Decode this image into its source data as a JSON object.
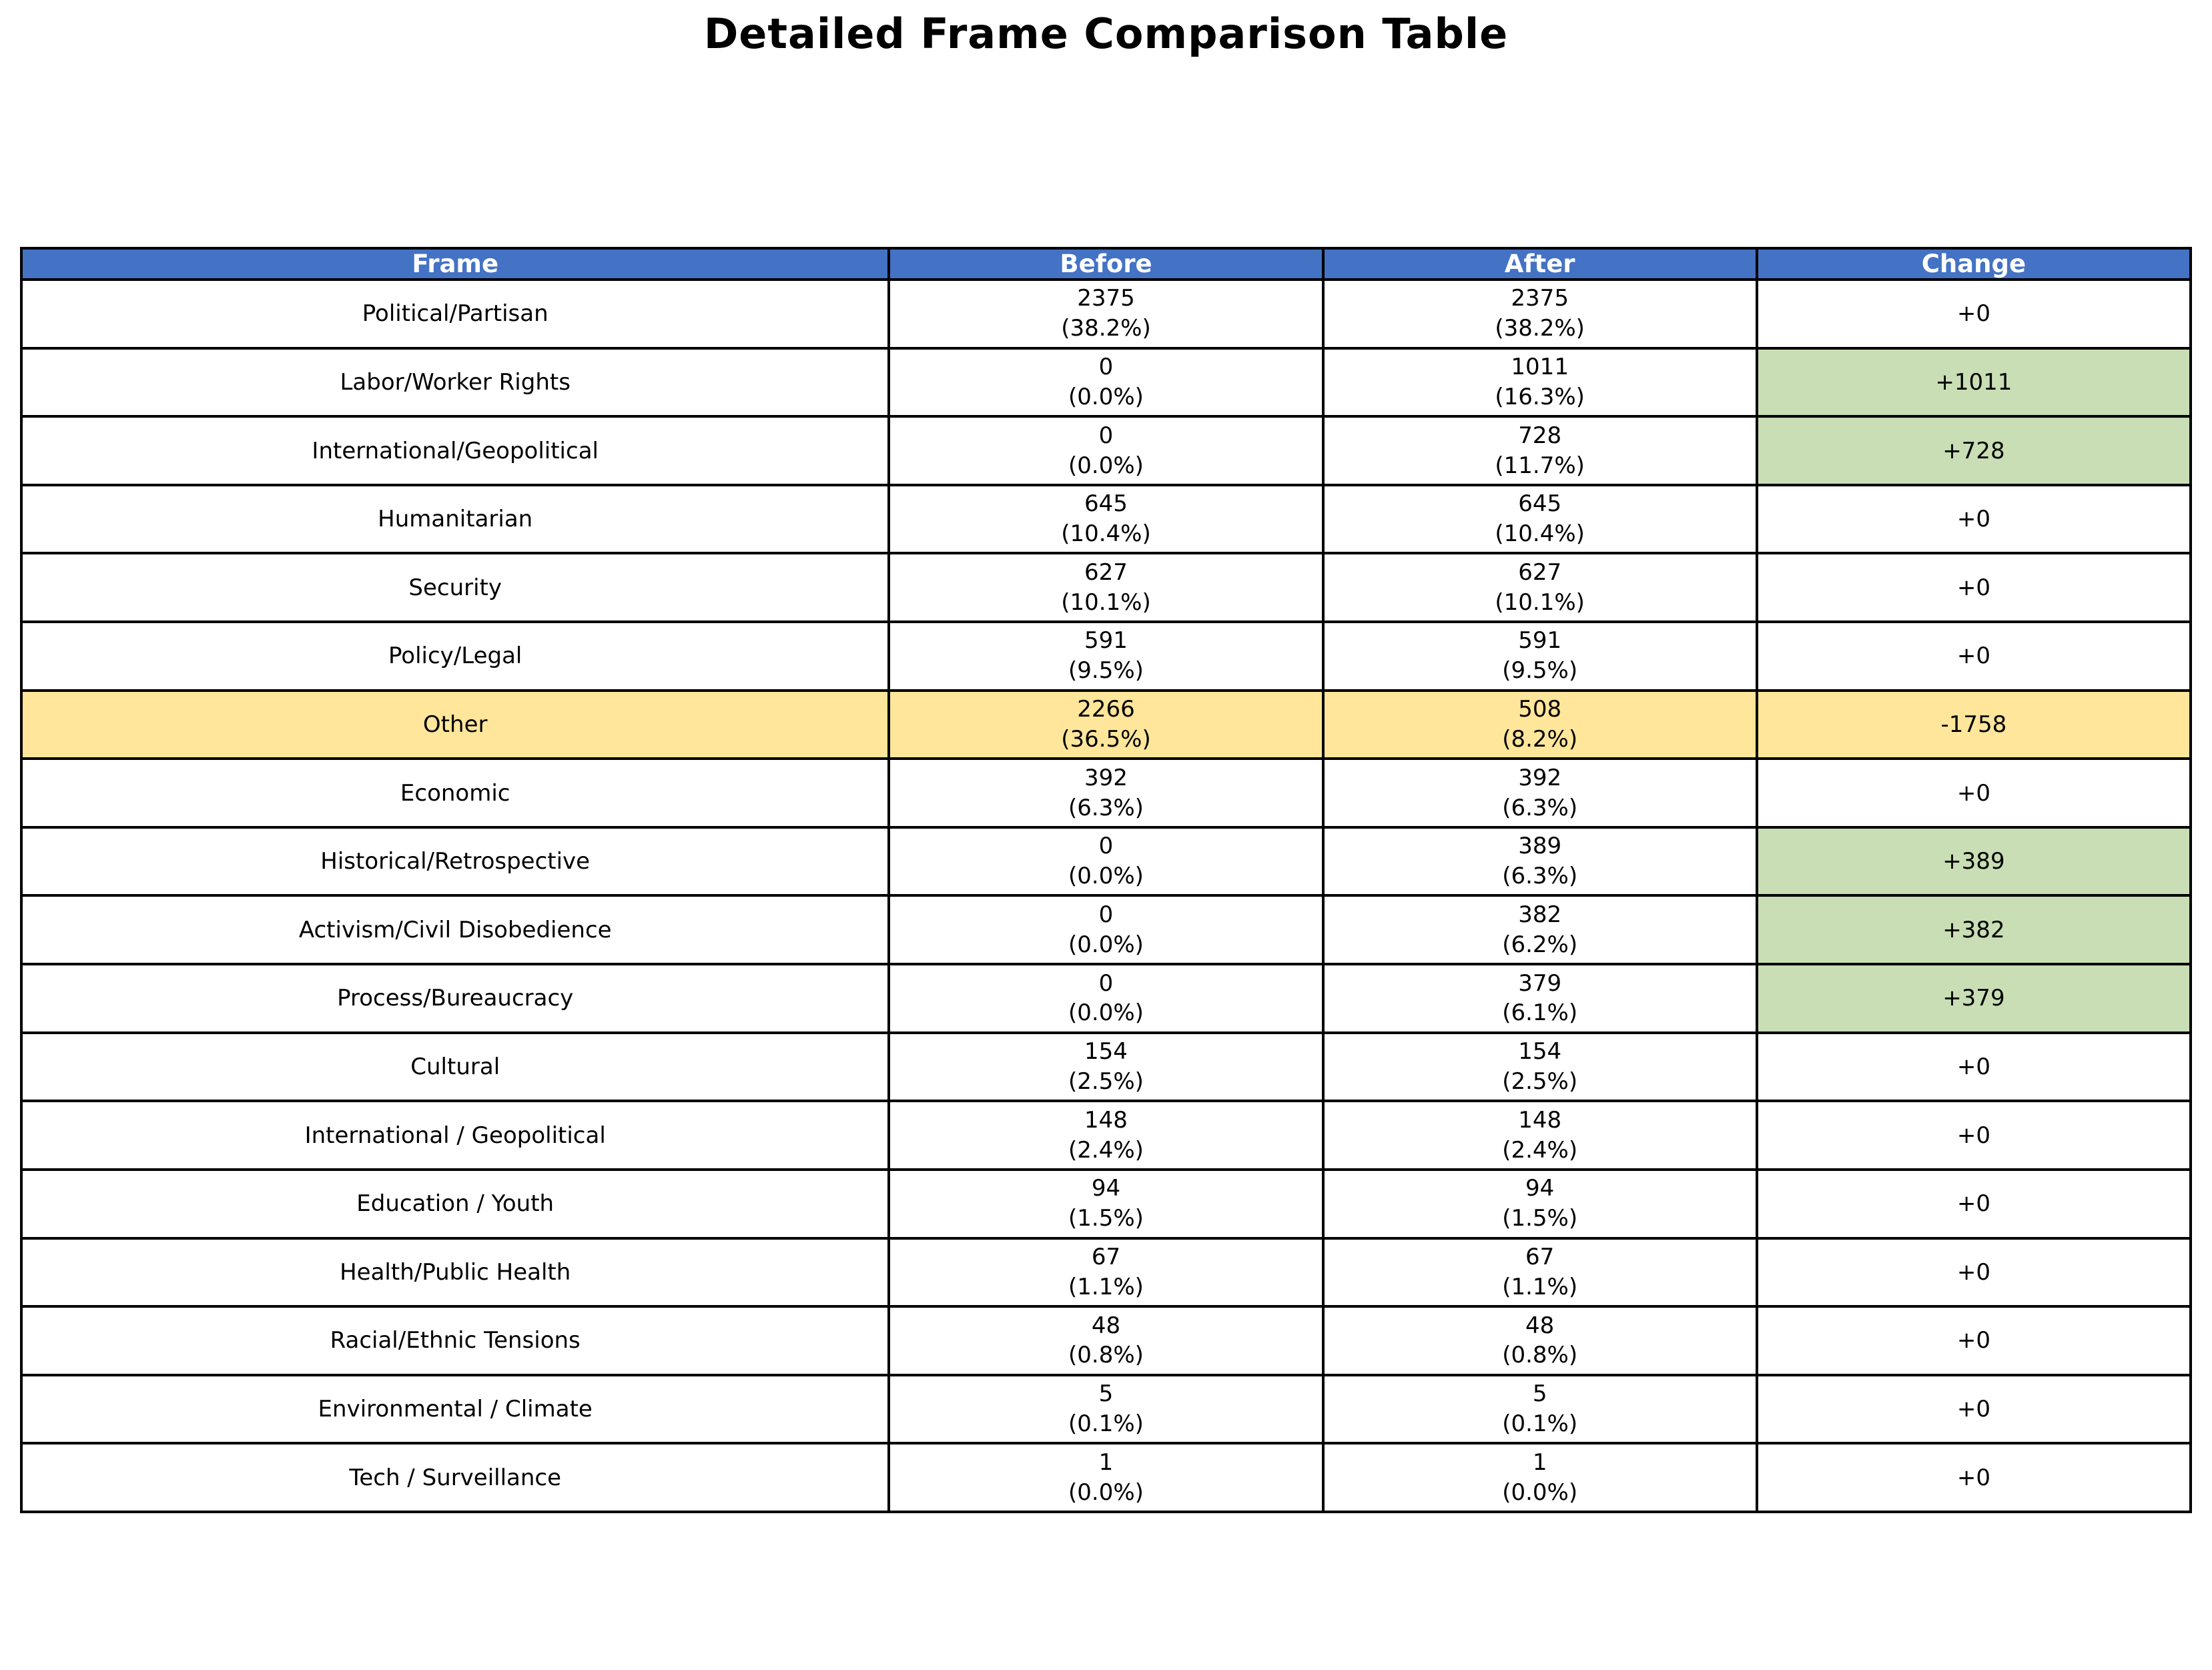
{
  "title": "Detailed Frame Comparison Table",
  "colors": {
    "header_bg": "#4472C4",
    "header_text": "#FFFFFF",
    "increase_cell_bg": "#C9DEB4",
    "other_row_bg": "#FFE69A",
    "border": "#000000"
  },
  "table": {
    "headers": [
      "Frame",
      "Before",
      "After",
      "Change"
    ],
    "rows": [
      {
        "frame": "Political/Partisan",
        "before_count": "2375",
        "before_pct": "(38.2%)",
        "after_count": "2375",
        "after_pct": "(38.2%)",
        "change": "+0",
        "highlight": "none"
      },
      {
        "frame": "Labor/Worker Rights",
        "before_count": "0",
        "before_pct": "(0.0%)",
        "after_count": "1011",
        "after_pct": "(16.3%)",
        "change": "+1011",
        "highlight": "change-green"
      },
      {
        "frame": "International/Geopolitical",
        "before_count": "0",
        "before_pct": "(0.0%)",
        "after_count": "728",
        "after_pct": "(11.7%)",
        "change": "+728",
        "highlight": "change-green"
      },
      {
        "frame": "Humanitarian",
        "before_count": "645",
        "before_pct": "(10.4%)",
        "after_count": "645",
        "after_pct": "(10.4%)",
        "change": "+0",
        "highlight": "none"
      },
      {
        "frame": "Security",
        "before_count": "627",
        "before_pct": "(10.1%)",
        "after_count": "627",
        "after_pct": "(10.1%)",
        "change": "+0",
        "highlight": "none"
      },
      {
        "frame": "Policy/Legal",
        "before_count": "591",
        "before_pct": "(9.5%)",
        "after_count": "591",
        "after_pct": "(9.5%)",
        "change": "+0",
        "highlight": "none"
      },
      {
        "frame": "Other",
        "before_count": "2266",
        "before_pct": "(36.5%)",
        "after_count": "508",
        "after_pct": "(8.2%)",
        "change": "-1758",
        "highlight": "row-yellow"
      },
      {
        "frame": "Economic",
        "before_count": "392",
        "before_pct": "(6.3%)",
        "after_count": "392",
        "after_pct": "(6.3%)",
        "change": "+0",
        "highlight": "none"
      },
      {
        "frame": "Historical/Retrospective",
        "before_count": "0",
        "before_pct": "(0.0%)",
        "after_count": "389",
        "after_pct": "(6.3%)",
        "change": "+389",
        "highlight": "change-green"
      },
      {
        "frame": "Activism/Civil Disobedience",
        "before_count": "0",
        "before_pct": "(0.0%)",
        "after_count": "382",
        "after_pct": "(6.2%)",
        "change": "+382",
        "highlight": "change-green"
      },
      {
        "frame": "Process/Bureaucracy",
        "before_count": "0",
        "before_pct": "(0.0%)",
        "after_count": "379",
        "after_pct": "(6.1%)",
        "change": "+379",
        "highlight": "change-green"
      },
      {
        "frame": "Cultural",
        "before_count": "154",
        "before_pct": "(2.5%)",
        "after_count": "154",
        "after_pct": "(2.5%)",
        "change": "+0",
        "highlight": "none"
      },
      {
        "frame": "International / Geopolitical",
        "before_count": "148",
        "before_pct": "(2.4%)",
        "after_count": "148",
        "after_pct": "(2.4%)",
        "change": "+0",
        "highlight": "none"
      },
      {
        "frame": "Education / Youth",
        "before_count": "94",
        "before_pct": "(1.5%)",
        "after_count": "94",
        "after_pct": "(1.5%)",
        "change": "+0",
        "highlight": "none"
      },
      {
        "frame": "Health/Public Health",
        "before_count": "67",
        "before_pct": "(1.1%)",
        "after_count": "67",
        "after_pct": "(1.1%)",
        "change": "+0",
        "highlight": "none"
      },
      {
        "frame": "Racial/Ethnic Tensions",
        "before_count": "48",
        "before_pct": "(0.8%)",
        "after_count": "48",
        "after_pct": "(0.8%)",
        "change": "+0",
        "highlight": "none"
      },
      {
        "frame": "Environmental / Climate",
        "before_count": "5",
        "before_pct": "(0.1%)",
        "after_count": "5",
        "after_pct": "(0.1%)",
        "change": "+0",
        "highlight": "none"
      },
      {
        "frame": "Tech / Surveillance",
        "before_count": "1",
        "before_pct": "(0.0%)",
        "after_count": "1",
        "after_pct": "(0.0%)",
        "change": "+0",
        "highlight": "none"
      }
    ]
  },
  "chart_data": {
    "type": "table",
    "title": "Detailed Frame Comparison Table",
    "columns": [
      "Frame",
      "Before",
      "After",
      "Change"
    ],
    "categories": [
      "Political/Partisan",
      "Labor/Worker Rights",
      "International/Geopolitical",
      "Humanitarian",
      "Security",
      "Policy/Legal",
      "Other",
      "Economic",
      "Historical/Retrospective",
      "Activism/Civil Disobedience",
      "Process/Bureaucracy",
      "Cultural",
      "International / Geopolitical",
      "Education / Youth",
      "Health/Public Health",
      "Racial/Ethnic Tensions",
      "Environmental / Climate",
      "Tech / Surveillance"
    ],
    "series": [
      {
        "name": "Before count",
        "values": [
          2375,
          0,
          0,
          645,
          627,
          591,
          2266,
          392,
          0,
          0,
          0,
          154,
          148,
          94,
          67,
          48,
          5,
          1
        ]
      },
      {
        "name": "Before percent",
        "values": [
          38.2,
          0.0,
          0.0,
          10.4,
          10.1,
          9.5,
          36.5,
          6.3,
          0.0,
          0.0,
          0.0,
          2.5,
          2.4,
          1.5,
          1.1,
          0.8,
          0.1,
          0.0
        ]
      },
      {
        "name": "After count",
        "values": [
          2375,
          1011,
          728,
          645,
          627,
          591,
          508,
          392,
          389,
          382,
          379,
          154,
          148,
          94,
          67,
          48,
          5,
          1
        ]
      },
      {
        "name": "After percent",
        "values": [
          38.2,
          16.3,
          11.7,
          10.4,
          10.1,
          9.5,
          8.2,
          6.3,
          6.3,
          6.2,
          6.1,
          2.5,
          2.4,
          1.5,
          1.1,
          0.8,
          0.1,
          0.0
        ]
      },
      {
        "name": "Change",
        "values": [
          0,
          1011,
          728,
          0,
          0,
          0,
          -1758,
          0,
          389,
          382,
          379,
          0,
          0,
          0,
          0,
          0,
          0,
          0
        ]
      }
    ],
    "layout_hints": {
      "header_bg": "#4472C4",
      "positive_change_cell_bg": "#C9DEB4",
      "other_row_bg": "#FFE69A",
      "grid": "black borders, all cells centered"
    }
  }
}
